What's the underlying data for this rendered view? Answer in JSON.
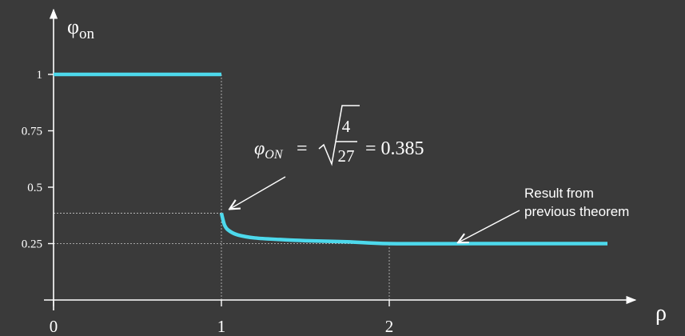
{
  "colors": {
    "background": "#3a3a3a",
    "curve": "#4dd9ec",
    "axes": "#ffffff",
    "guides": "#c8c8c8"
  },
  "chart_data": {
    "type": "line",
    "y_axis_label": "φ",
    "y_axis_label_sub": "on",
    "x_axis_label": "ρ",
    "xlim": [
      0,
      3.35
    ],
    "ylim": [
      0,
      1.18
    ],
    "x_ticks": [
      {
        "value": 0,
        "label": "0"
      },
      {
        "value": 1,
        "label": "1"
      },
      {
        "value": 2,
        "label": "2"
      }
    ],
    "y_ticks": [
      {
        "value": 0.25,
        "label": "0.25"
      },
      {
        "value": 0.5,
        "label": "0.5"
      },
      {
        "value": 0.75,
        "label": "0.75"
      },
      {
        "value": 1,
        "label": "1"
      }
    ],
    "series": [
      {
        "segments": [
          {
            "x": [
              0,
              1
            ],
            "y": [
              1,
              1
            ]
          },
          {
            "x": [
              1,
              1.02,
              1.05,
              1.1,
              1.2,
              1.35,
              1.5,
              1.75,
              2,
              2.5,
              3,
              3.3
            ],
            "y": [
              0.385,
              0.33,
              0.305,
              0.288,
              0.275,
              0.268,
              0.263,
              0.258,
              0.25,
              0.25,
              0.25,
              0.25
            ]
          }
        ]
      }
    ],
    "guides": [
      {
        "x1": 1,
        "y1": 0,
        "x2": 1,
        "y2": 1
      },
      {
        "x1": 0,
        "y1": 0.385,
        "x2": 1,
        "y2": 0.385
      },
      {
        "x1": 0,
        "y1": 0.25,
        "x2": 2,
        "y2": 0.25
      },
      {
        "x1": 2,
        "y1": 0,
        "x2": 2,
        "y2": 0.25
      }
    ],
    "annotations": [
      {
        "id": "formula",
        "text_lhs": "φ",
        "text_lhs_sub": "ON",
        "equals": "=",
        "numerator": "4",
        "denominator": "27",
        "result": "= 0.385",
        "arrow_to": {
          "x": 1.02,
          "y": 0.41
        }
      },
      {
        "id": "theorem",
        "line1": "Result from",
        "line2": "previous theorem",
        "arrow_to": {
          "x": 2.4,
          "y": 0.265
        }
      }
    ]
  }
}
